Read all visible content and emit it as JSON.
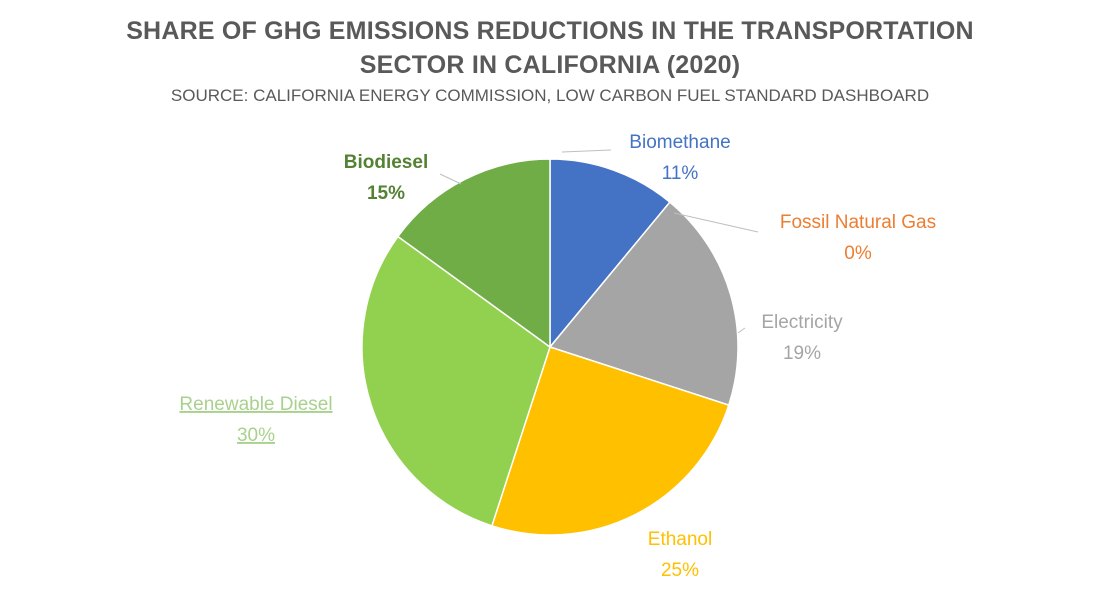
{
  "chart_data": {
    "type": "pie",
    "title": "SHARE OF GHG EMISSIONS REDUCTIONS IN THE TRANSPORTATION SECTOR IN CALIFORNIA (2020)",
    "title_lines": [
      "SHARE OF GHG EMISSIONS REDUCTIONS IN THE TRANSPORTATION",
      "SECTOR IN CALIFORNIA (2020)"
    ],
    "subtitle": "SOURCE: CALIFORNIA ENERGY COMMISSION, LOW CARBON FUEL STANDARD DASHBOARD",
    "legend": "none",
    "slices": [
      {
        "name": "Biomethane",
        "value": 11,
        "label": "11%",
        "color": "#4472C4",
        "label_color": "#4472C4"
      },
      {
        "name": "Fossil Natural Gas",
        "value": 0,
        "label": "0%",
        "color": "#ED7D31",
        "label_color": "#ED7D31"
      },
      {
        "name": "Electricity",
        "value": 19,
        "label": "19%",
        "color": "#A5A5A5",
        "label_color": "#A5A5A5"
      },
      {
        "name": "Ethanol",
        "value": 25,
        "label": "25%",
        "color": "#FFC000",
        "label_color": "#FFC000"
      },
      {
        "name": "Renewable Diesel",
        "value": 30,
        "label": "30%",
        "color": "#92D050",
        "label_color": "#A9D18E"
      },
      {
        "name": "Biodiesel",
        "value": 15,
        "label": "15%",
        "color": "#70AD47",
        "label_color": "#548235"
      }
    ]
  }
}
